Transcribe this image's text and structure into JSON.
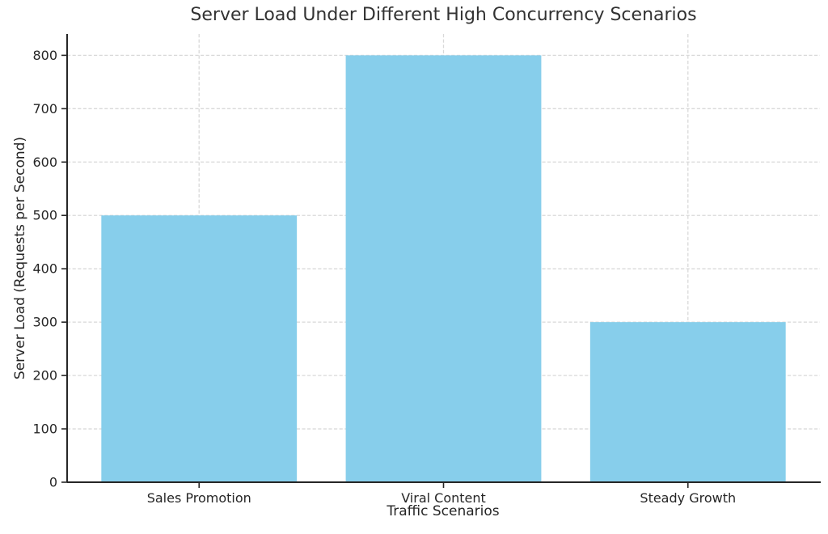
{
  "figure": {
    "title": "Server Load Under Different High Concurrency Scenarios",
    "xlabel": "Traffic Scenarios",
    "ylabel": "Server Load (Requests per Second)"
  },
  "chart_data": {
    "type": "bar",
    "title": "Server Load Under Different High Concurrency Scenarios",
    "xlabel": "Traffic Scenarios",
    "ylabel": "Server Load (Requests per Second)",
    "categories": [
      "Sales Promotion",
      "Viral Content",
      "Steady Growth"
    ],
    "values": [
      500,
      800,
      300
    ],
    "ytick_labels": [
      "0",
      "100",
      "200",
      "300",
      "400",
      "500",
      "600",
      "700",
      "800"
    ],
    "yticks": [
      0,
      100,
      200,
      300,
      400,
      500,
      600,
      700,
      800
    ],
    "ylim": [
      0,
      840
    ],
    "bar_color": "#87CEEB",
    "gridline_color": "#d9d9d9",
    "grid_style": "dashed-both-axes",
    "axis_color": "#262626",
    "text_color": "#262626",
    "legend": "none",
    "background_color": "#ffffff"
  }
}
